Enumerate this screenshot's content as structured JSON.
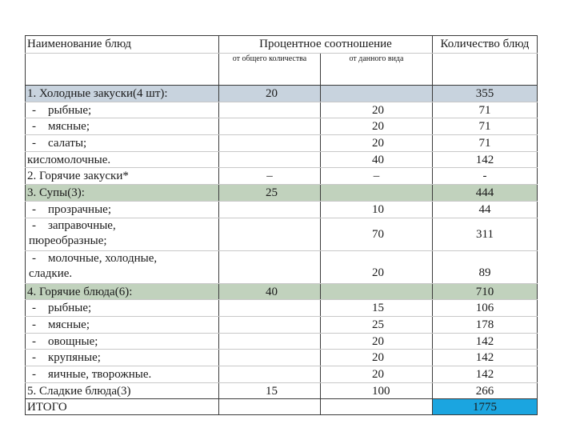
{
  "header": {
    "col1": "Наименование блюд",
    "col2": "Процентное соотношение",
    "col2_sub1": "от общего количества",
    "col2_sub2": "от данного вида",
    "col3": "Количество блюд"
  },
  "rows": [
    {
      "name": "1. Холодные закуски(4 шт):",
      "dash": "",
      "pct_total": "20",
      "pct_type": "",
      "count": "355",
      "bg": "blue"
    },
    {
      "name": "рыбные;",
      "dash": "-",
      "pct_total": "",
      "pct_type": "20",
      "count": "71"
    },
    {
      "name": "мясные;",
      "dash": "-",
      "pct_total": "",
      "pct_type": "20",
      "count": "71"
    },
    {
      "name": "салаты;",
      "dash": "-",
      "pct_total": "",
      "pct_type": "20",
      "count": "71"
    },
    {
      "name": "кисломолочные.",
      "dash": "",
      "pct_total": "",
      "pct_type": "40",
      "count": "142"
    },
    {
      "name": "2. Горячие закуски*",
      "dash": "",
      "pct_total": "–",
      "pct_type": "–",
      "count": "-"
    },
    {
      "name": "3. Супы(3):",
      "dash": "",
      "pct_total": "25",
      "pct_type": "",
      "count": "444",
      "bg": "green"
    },
    {
      "name": "прозрачные;",
      "dash": "-",
      "pct_total": "",
      "pct_type": "10",
      "count": "44"
    },
    {
      "name_line1": "заправочные,",
      "name_line2": "пюреобразные;",
      "dash": "-",
      "pct_total": "",
      "pct_type": "70",
      "count": "311"
    },
    {
      "name_line1": "молочные, холодные,",
      "name_line2": "сладкие.",
      "dash": "-",
      "pct_total": "",
      "pct_type": "20",
      "count": "89"
    },
    {
      "name": "4. Горячие блюда(6):",
      "dash": "",
      "pct_total": "40",
      "pct_type": "",
      "count": "710",
      "bg": "green"
    },
    {
      "name": "рыбные;",
      "dash": "-",
      "pct_total": "",
      "pct_type": "15",
      "count": "106"
    },
    {
      "name": "мясные;",
      "dash": "-",
      "pct_total": "",
      "pct_type": "25",
      "count": "178"
    },
    {
      "name": "овощные;",
      "dash": "-",
      "pct_total": "",
      "pct_type": "20",
      "count": "142"
    },
    {
      "name": "крупяные;",
      "dash": "-",
      "pct_total": "",
      "pct_type": "20",
      "count": "142"
    },
    {
      "name": "яичные, творожные.",
      "dash": "-",
      "pct_total": "",
      "pct_type": "20",
      "count": "142"
    },
    {
      "name": "5. Сладкие блюда(3)",
      "dash": "",
      "pct_total": "15",
      "pct_type": "100",
      "count": "266"
    },
    {
      "name": "ИТОГО",
      "dash": "",
      "pct_total": "",
      "pct_type": "",
      "count": "1775",
      "bg_count": "highlight"
    }
  ]
}
